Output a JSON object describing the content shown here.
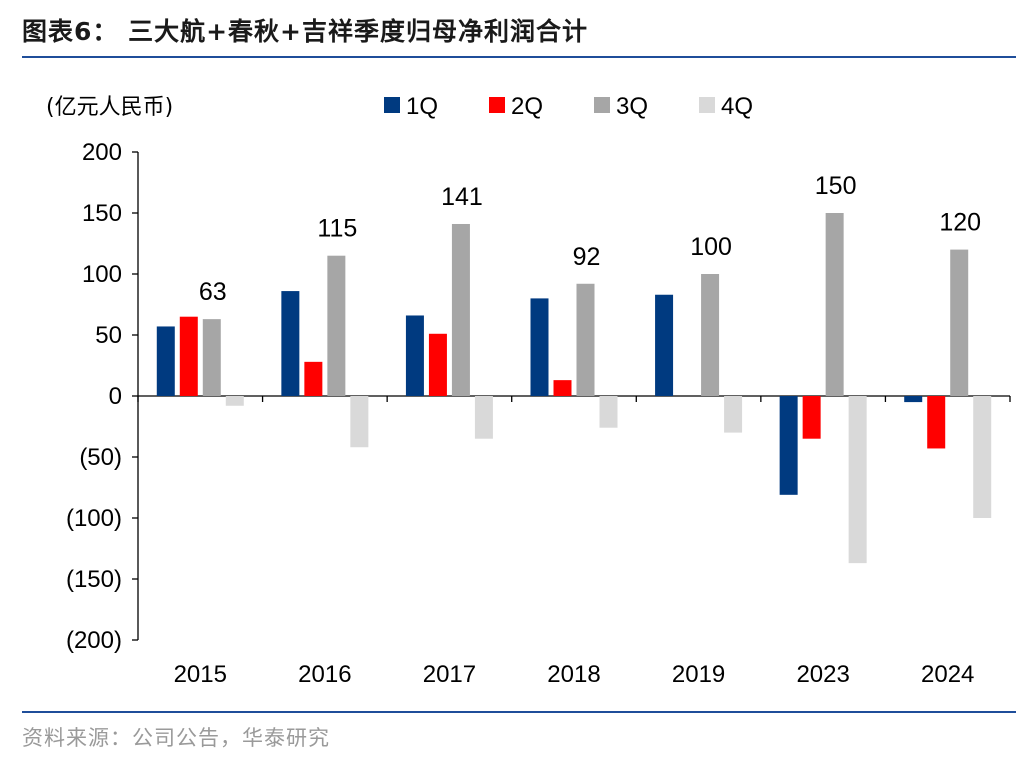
{
  "title": "图表6：  三大航+春秋+吉祥季度归母净利润合计",
  "source": "资料来源：公司公告，华泰研究",
  "chart_data": {
    "type": "bar",
    "unit_label": "(亿元人民币)",
    "categories": [
      "2015",
      "2016",
      "2017",
      "2018",
      "2019",
      "2023",
      "2024"
    ],
    "series": [
      {
        "name": "1Q",
        "color": "#003a80",
        "values": [
          57,
          86,
          66,
          80,
          83,
          -81,
          -5
        ]
      },
      {
        "name": "2Q",
        "color": "#ff0000",
        "values": [
          65,
          28,
          51,
          13,
          null,
          -35,
          -43
        ]
      },
      {
        "name": "3Q",
        "color": "#a6a6a6",
        "values": [
          63,
          115,
          141,
          92,
          100,
          150,
          120
        ]
      },
      {
        "name": "4Q",
        "color": "#d9d9d9",
        "values": [
          -8,
          -42,
          -35,
          -26,
          -30,
          -137,
          -100
        ]
      }
    ],
    "data_labels": [
      {
        "category": "2015",
        "series": "3Q",
        "text": "63"
      },
      {
        "category": "2016",
        "series": "3Q",
        "text": "115"
      },
      {
        "category": "2017",
        "series": "3Q",
        "text": "141"
      },
      {
        "category": "2018",
        "series": "3Q",
        "text": "92"
      },
      {
        "category": "2019",
        "series": "3Q",
        "text": "100"
      },
      {
        "category": "2023",
        "series": "3Q",
        "text": "150"
      },
      {
        "category": "2024",
        "series": "3Q",
        "text": "120"
      }
    ],
    "y_ticks": [
      {
        "value": 200,
        "label": "200"
      },
      {
        "value": 150,
        "label": "150"
      },
      {
        "value": 100,
        "label": "100"
      },
      {
        "value": 50,
        "label": "50"
      },
      {
        "value": 0,
        "label": "0"
      },
      {
        "value": -50,
        "label": "(50)"
      },
      {
        "value": -100,
        "label": "(100)"
      },
      {
        "value": -150,
        "label": "(150)"
      },
      {
        "value": -200,
        "label": "(200)"
      }
    ],
    "ylim": [
      -200,
      200
    ],
    "grid": false,
    "legend_position": "top"
  }
}
